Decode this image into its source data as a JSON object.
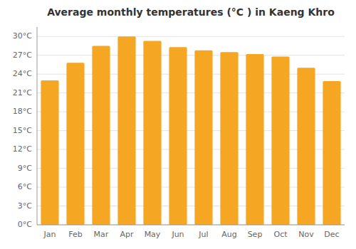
{
  "chart_data": {
    "type": "bar",
    "title": "Average monthly temperatures (°C ) in Kaeng Khro",
    "categories": [
      "Jan",
      "Feb",
      "Mar",
      "Apr",
      "May",
      "Jun",
      "Jul",
      "Aug",
      "Sep",
      "Oct",
      "Nov",
      "Dec"
    ],
    "values": [
      23.0,
      25.8,
      28.5,
      30.0,
      29.3,
      28.3,
      27.8,
      27.5,
      27.2,
      26.8,
      25.0,
      22.9
    ],
    "color": "#F5A623",
    "ylim": [
      0,
      31.5
    ],
    "yticks": [
      {
        "value": 0,
        "label": "0°C"
      },
      {
        "value": 3,
        "label": "3°C"
      },
      {
        "value": 6,
        "label": "6°C"
      },
      {
        "value": 9,
        "label": "9°C"
      },
      {
        "value": 12,
        "label": "12°C"
      },
      {
        "value": 15,
        "label": "15°C"
      },
      {
        "value": 18,
        "label": "18°C"
      },
      {
        "value": 21,
        "label": "21°C"
      },
      {
        "value": 24,
        "label": "24°C"
      },
      {
        "value": 27,
        "label": "27°C"
      },
      {
        "value": 30,
        "label": "30°C"
      }
    ],
    "grid": true
  }
}
